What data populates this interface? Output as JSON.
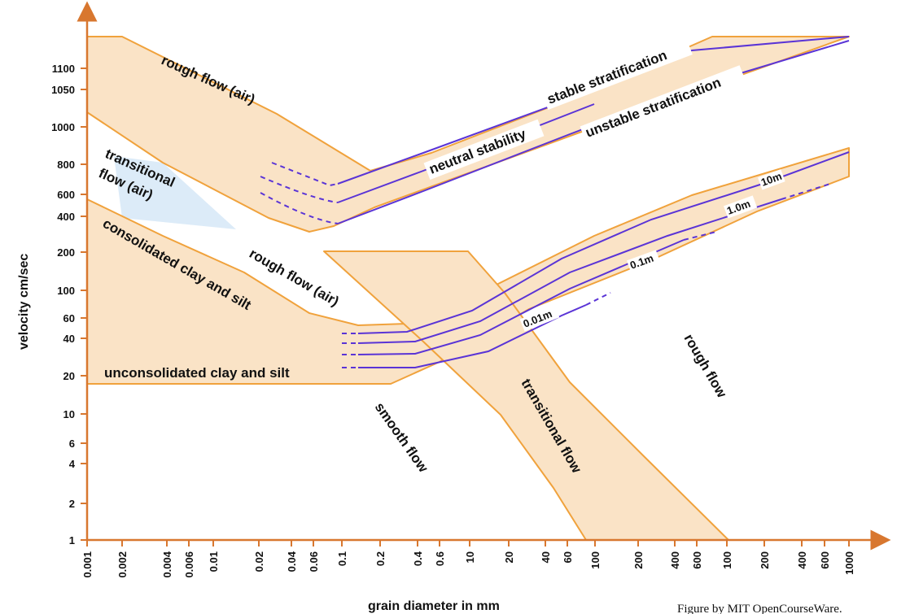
{
  "chart_data": {
    "type": "area",
    "xlabel": "grain diameter in mm",
    "ylabel": "velocity cm/sec",
    "x_tick_labels": [
      "0.001",
      "0.002",
      "0.004",
      "0.006",
      "0.01",
      "0.02",
      "0.04",
      "0.06",
      "0.1",
      "0.2",
      "0.4",
      "0.6",
      "10",
      "20",
      "40",
      "60",
      "100",
      "200",
      "400",
      "600",
      "100",
      "200",
      "400",
      "600",
      "1000"
    ],
    "y_tick_labels": [
      "1",
      "2",
      "4",
      "6",
      "10",
      "20",
      "40",
      "60",
      "100",
      "200",
      "400",
      "600",
      "800",
      "1000",
      "1050",
      "1100"
    ],
    "region_labels": {
      "rough_flow_air_top": "rough flow (air)",
      "transitional_air": [
        "transitional",
        "flow (air)"
      ],
      "consolidated": "consolidated clay and silt",
      "rough_flow_air_mid": "rough flow (air)",
      "unconsolidated": "unconsolidated clay and silt",
      "smooth_flow": "smooth flow",
      "transitional_flow": "transitional flow",
      "rough_flow": "rough flow"
    },
    "curve_labels": {
      "stable": "stable stratification",
      "neutral": "neutral stability",
      "unstable": "unstable stratification",
      "d10m": "10m",
      "d1m": "1.0m",
      "d01m": "0.1m",
      "d001m": "0.01m"
    },
    "colors": {
      "region_fill": "#fae3c6",
      "region_stroke": "#f0a23c",
      "curve": "#5a34d6",
      "axis": "#d8772f",
      "transitional_air_fill": "#dcebf8"
    }
  },
  "credit": "Figure by MIT OpenCourseWare."
}
